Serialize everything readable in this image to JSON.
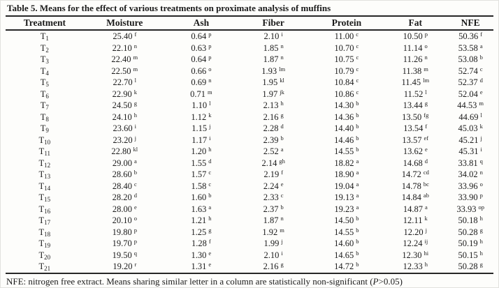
{
  "title": "Table 5. Means for the effect of various treatments on proximate analysis of muffins",
  "table": {
    "columns": [
      "Treatment",
      "Moisture",
      "Ash",
      "Fiber",
      "Protein",
      "Fat",
      "NFE"
    ],
    "rows": [
      {
        "treatment": {
          "base": "T",
          "sub": "1"
        },
        "values": [
          [
            "25.40",
            "f"
          ],
          [
            "0.64",
            "p"
          ],
          [
            "2.10",
            "i"
          ],
          [
            "11.00",
            "c"
          ],
          [
            "10.50",
            "p"
          ],
          [
            "50.36",
            "f"
          ]
        ]
      },
      {
        "treatment": {
          "base": "T",
          "sub": "2"
        },
        "values": [
          [
            "22.10",
            "n"
          ],
          [
            "0.63",
            "p"
          ],
          [
            "1.85",
            "n"
          ],
          [
            "10.70",
            "c"
          ],
          [
            "11.14",
            "o"
          ],
          [
            "53.58",
            "a"
          ]
        ]
      },
      {
        "treatment": {
          "base": "T",
          "sub": "3"
        },
        "values": [
          [
            "22.40",
            "m"
          ],
          [
            "0.64",
            "p"
          ],
          [
            "1.87",
            "n"
          ],
          [
            "10.75",
            "c"
          ],
          [
            "11.26",
            "n"
          ],
          [
            "53.08",
            "b"
          ]
        ]
      },
      {
        "treatment": {
          "base": "T",
          "sub": "4"
        },
        "values": [
          [
            "22.50",
            "m"
          ],
          [
            "0.66",
            "o"
          ],
          [
            "1.93",
            "lm"
          ],
          [
            "10.79",
            "c"
          ],
          [
            "11.38",
            "m"
          ],
          [
            "52.74",
            "c"
          ]
        ]
      },
      {
        "treatment": {
          "base": "T",
          "sub": "5"
        },
        "values": [
          [
            "22.70",
            "l"
          ],
          [
            "0.69",
            "n"
          ],
          [
            "1.95",
            "kl"
          ],
          [
            "10.84",
            "c"
          ],
          [
            "11.45",
            "lm"
          ],
          [
            "52.37",
            "d"
          ]
        ]
      },
      {
        "treatment": {
          "base": "T",
          "sub": "6"
        },
        "values": [
          [
            "22.90",
            "k"
          ],
          [
            "0.71",
            "m"
          ],
          [
            "1.97",
            "jk"
          ],
          [
            "10.86",
            "c"
          ],
          [
            "11.52",
            "l"
          ],
          [
            "52.04",
            "e"
          ]
        ]
      },
      {
        "treatment": {
          "base": "T",
          "sub": "7"
        },
        "values": [
          [
            "24.50",
            "g"
          ],
          [
            "1.10",
            "l"
          ],
          [
            "2.13",
            "h"
          ],
          [
            "14.30",
            "b"
          ],
          [
            "13.44",
            "g"
          ],
          [
            "44.53",
            "m"
          ]
        ]
      },
      {
        "treatment": {
          "base": "T",
          "sub": "8"
        },
        "values": [
          [
            "24.10",
            "h"
          ],
          [
            "1.12",
            "k"
          ],
          [
            "2.16",
            "g"
          ],
          [
            "14.36",
            "b"
          ],
          [
            "13.50",
            "fg"
          ],
          [
            "44.69",
            "l"
          ]
        ]
      },
      {
        "treatment": {
          "base": "T",
          "sub": "9"
        },
        "values": [
          [
            "23.60",
            "i"
          ],
          [
            "1.15",
            "j"
          ],
          [
            "2.28",
            "d"
          ],
          [
            "14.40",
            "b"
          ],
          [
            "13.54",
            "f"
          ],
          [
            "45.03",
            "k"
          ]
        ]
      },
      {
        "treatment": {
          "base": "T",
          "sub": "10"
        },
        "values": [
          [
            "23.20",
            "j"
          ],
          [
            "1.17",
            "i"
          ],
          [
            "2.39",
            "b"
          ],
          [
            "14.46",
            "b"
          ],
          [
            "13.57",
            "ef"
          ],
          [
            "45.21",
            "j"
          ]
        ]
      },
      {
        "treatment": {
          "base": "T",
          "sub": "11"
        },
        "values": [
          [
            "22.80",
            "kl"
          ],
          [
            "1.20",
            "h"
          ],
          [
            "2.52",
            "a"
          ],
          [
            "14.55",
            "b"
          ],
          [
            "13.62",
            "e"
          ],
          [
            "45.31",
            "i"
          ]
        ]
      },
      {
        "treatment": {
          "base": "T",
          "sub": "12"
        },
        "values": [
          [
            "29.00",
            "a"
          ],
          [
            "1.55",
            "d"
          ],
          [
            "2.14",
            "gh"
          ],
          [
            "18.82",
            "a"
          ],
          [
            "14.68",
            "d"
          ],
          [
            "33.81",
            "q"
          ]
        ]
      },
      {
        "treatment": {
          "base": "T",
          "sub": "13"
        },
        "values": [
          [
            "28.60",
            "b"
          ],
          [
            "1.57",
            "c"
          ],
          [
            "2.19",
            "f"
          ],
          [
            "18.90",
            "a"
          ],
          [
            "14.72",
            "cd"
          ],
          [
            "34.02",
            "n"
          ]
        ]
      },
      {
        "treatment": {
          "base": "T",
          "sub": "14"
        },
        "values": [
          [
            "28.40",
            "c"
          ],
          [
            "1.58",
            "c"
          ],
          [
            "2.24",
            "e"
          ],
          [
            "19.04",
            "a"
          ],
          [
            "14.78",
            "bc"
          ],
          [
            "33.96",
            "o"
          ]
        ]
      },
      {
        "treatment": {
          "base": "T",
          "sub": "15"
        },
        "values": [
          [
            "28.20",
            "d"
          ],
          [
            "1.60",
            "b"
          ],
          [
            "2.33",
            "c"
          ],
          [
            "19.13",
            "a"
          ],
          [
            "14.84",
            "ab"
          ],
          [
            "33.90",
            "p"
          ]
        ]
      },
      {
        "treatment": {
          "base": "T",
          "sub": "16"
        },
        "values": [
          [
            "28.00",
            "e"
          ],
          [
            "1.63",
            "a"
          ],
          [
            "2.37",
            "b"
          ],
          [
            "19.23",
            "a"
          ],
          [
            "14.87",
            "a"
          ],
          [
            "33.93",
            "op"
          ]
        ]
      },
      {
        "treatment": {
          "base": "T",
          "sub": "17"
        },
        "values": [
          [
            "20.10",
            "o"
          ],
          [
            "1.21",
            "h"
          ],
          [
            "1.87",
            "n"
          ],
          [
            "14.50",
            "b"
          ],
          [
            "12.11",
            "k"
          ],
          [
            "50.18",
            "h"
          ]
        ]
      },
      {
        "treatment": {
          "base": "T",
          "sub": "18"
        },
        "values": [
          [
            "19.80",
            "p"
          ],
          [
            "1.25",
            "g"
          ],
          [
            "1.92",
            "m"
          ],
          [
            "14.55",
            "b"
          ],
          [
            "12.20",
            "j"
          ],
          [
            "50.28",
            "g"
          ]
        ]
      },
      {
        "treatment": {
          "base": "T",
          "sub": "19"
        },
        "values": [
          [
            "19.70",
            "p"
          ],
          [
            "1.28",
            "f"
          ],
          [
            "1.99",
            "j"
          ],
          [
            "14.60",
            "b"
          ],
          [
            "12.24",
            "ij"
          ],
          [
            "50.19",
            "h"
          ]
        ]
      },
      {
        "treatment": {
          "base": "T",
          "sub": "20"
        },
        "values": [
          [
            "19.50",
            "q"
          ],
          [
            "1.30",
            "e"
          ],
          [
            "2.10",
            "i"
          ],
          [
            "14.65",
            "b"
          ],
          [
            "12.30",
            "hi"
          ],
          [
            "50.15",
            "h"
          ]
        ]
      },
      {
        "treatment": {
          "base": "T",
          "sub": "21"
        },
        "values": [
          [
            "19.20",
            "r"
          ],
          [
            "1.31",
            "e"
          ],
          [
            "2.16",
            "g"
          ],
          [
            "14.72",
            "b"
          ],
          [
            "12.33",
            "h"
          ],
          [
            "50.28",
            "g"
          ]
        ]
      }
    ]
  },
  "footnote": {
    "prefix": "NFE: nitrogen free extract. Means sharing similar letter in a column are statistically non-significant (",
    "p_symbol": "P",
    "suffix": ">0.05)"
  },
  "colors": {
    "text": "#1b1b1b",
    "rule": "#262626",
    "background": "#fdfdfb"
  }
}
